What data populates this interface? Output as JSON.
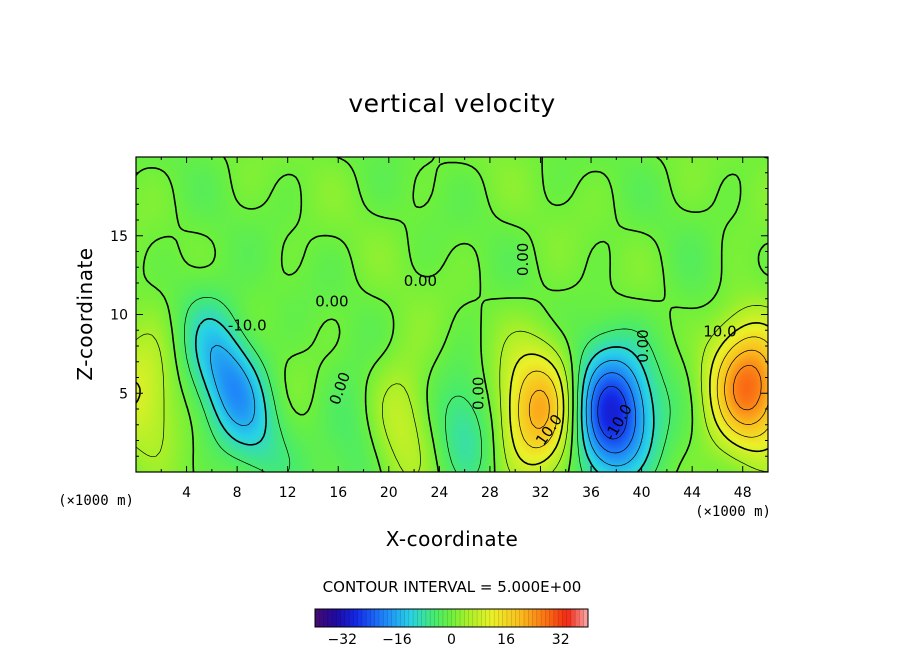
{
  "chart_data": {
    "type": "heatmap",
    "title": "vertical velocity",
    "xlabel": "X-coordinate",
    "ylabel": "Z-coordinate",
    "x_unit": "(×1000 m)",
    "xlim": [
      0,
      50
    ],
    "ylim": [
      0,
      20
    ],
    "x_ticks": [
      "4",
      "8",
      "12",
      "16",
      "20",
      "24",
      "28",
      "32",
      "36",
      "40",
      "44",
      "48"
    ],
    "y_ticks": [
      "5",
      "10",
      "15"
    ],
    "contour_interval_text": "CONTOUR INTERVAL = 5.000E+00",
    "contour_labels": [
      "0.00",
      "0.00",
      "-10.0",
      "0.00",
      "0.00",
      "0.00",
      "10.0",
      "-10.0",
      "0.00",
      "10.0"
    ],
    "colorbar": {
      "range": [
        -40,
        40
      ],
      "ticks": [
        "−32",
        "−16",
        "0",
        "16",
        "32"
      ],
      "colormap": "rainbow"
    },
    "features": [
      {
        "kind": "downdraft",
        "x": 7.5,
        "z": 5.8,
        "peak": -18
      },
      {
        "kind": "updraft",
        "x": 0.5,
        "z": 5.5,
        "peak": 10
      },
      {
        "kind": "downdraft",
        "x": 17.5,
        "z": 2.5,
        "peak": -6
      },
      {
        "kind": "updraft",
        "x": 21,
        "z": 3.5,
        "peak": 9
      },
      {
        "kind": "downdraft",
        "x": 26,
        "z": 3,
        "peak": -8
      },
      {
        "kind": "updraft",
        "x": 32,
        "z": 3.8,
        "peak": 22
      },
      {
        "kind": "downdraft",
        "x": 37.5,
        "z": 3.5,
        "peak": -30
      },
      {
        "kind": "updraft",
        "x": 48.5,
        "z": 5.5,
        "peak": 27
      },
      {
        "kind": "downdraft",
        "x": 44.5,
        "z": 8.5,
        "peak": -3
      }
    ]
  }
}
